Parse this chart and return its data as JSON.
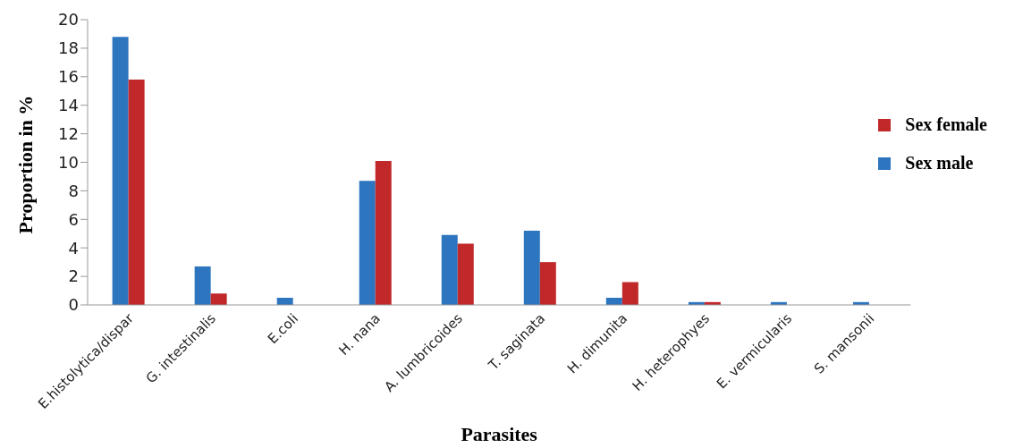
{
  "chart_data": {
    "type": "bar",
    "xlabel": "Parasites",
    "ylabel": "Proportion in %",
    "categories": [
      "E.histolytica/dispar",
      "G. intestinalis",
      "E.coli",
      "H. nana",
      "A. lumbricoides",
      "T. saginata",
      "H. dimunita",
      "H. heterophyes",
      "E. vermicularis",
      "S. mansonii"
    ],
    "series": [
      {
        "name": "Sex male",
        "color": "#2e75c0",
        "values": [
          18.8,
          2.7,
          0.5,
          8.7,
          4.9,
          5.2,
          0.5,
          0.2,
          0.2,
          0.2
        ]
      },
      {
        "name": "Sex female",
        "color": "#c0282a",
        "values": [
          15.8,
          0.8,
          0,
          10.1,
          4.3,
          3.0,
          1.6,
          0.2,
          0,
          0
        ]
      }
    ],
    "ylim": [
      0,
      20
    ],
    "yticks": [
      0,
      2,
      4,
      6,
      8,
      10,
      12,
      14,
      16,
      18,
      20
    ],
    "grid": false,
    "legend": "top right"
  }
}
